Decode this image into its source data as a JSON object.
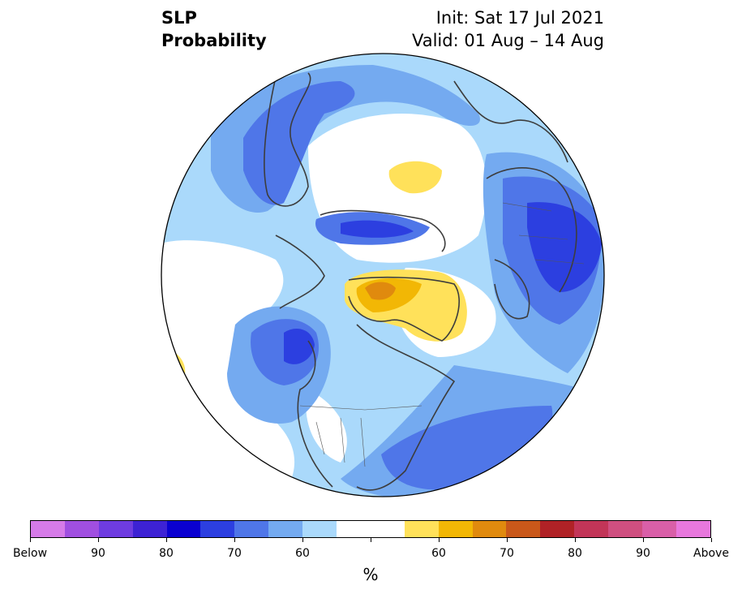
{
  "title": {
    "variable": "SLP",
    "product": "Probability",
    "init": "Init: Sat 17 Jul 2021",
    "valid": "Valid: 01 Aug – 14 Aug"
  },
  "colorbar": {
    "unit": "%",
    "colors": [
      "#d67be8",
      "#a04fe0",
      "#6e3ce0",
      "#3d22d4",
      "#0a00d0",
      "#2c3fe0",
      "#4f76e8",
      "#74aaf0",
      "#aad9fb",
      "#ffffff",
      "#ffffff",
      "#ffe15a",
      "#f2b705",
      "#e08a0e",
      "#c9581a",
      "#b02226",
      "#c23558",
      "#cf4f80",
      "#d95fa8",
      "#e878dd"
    ],
    "tick_labels": [
      "Below",
      "90",
      "80",
      "70",
      "60",
      "",
      "60",
      "70",
      "80",
      "90",
      "Above"
    ]
  },
  "map": {
    "projection": "north-polar-stereographic",
    "region": "Northern Hemisphere (North America / Arctic / Europe)",
    "color_fill": {
      "ocean_background": "#ffffff",
      "below_light": "#aad9fb",
      "below_mid": "#74aaf0",
      "below_strong": "#4f76e8",
      "below_stronger": "#2c3fe0",
      "above_light": "#ffe15a",
      "above_mid": "#f2b705",
      "above_strong": "#e08a0e"
    }
  }
}
